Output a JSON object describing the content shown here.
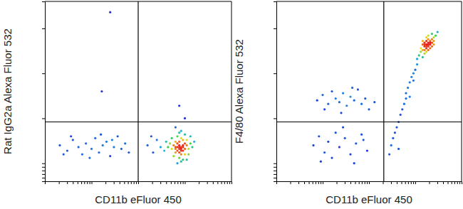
{
  "chart_data": [
    {
      "type": "scatter",
      "x_label": "CD11b eFluor 450",
      "y_label": "Rat IgG2a Alexa Fluor 532",
      "xlim": [
        0,
        100
      ],
      "ylim": [
        0,
        100
      ],
      "xticks": [
        0,
        7.5,
        11.9,
        15,
        17.5,
        19.5,
        21.1,
        22.6,
        23.9,
        25,
        32.5,
        36.9,
        40,
        42.5,
        44.5,
        46.1,
        47.6,
        48.9,
        50,
        57.5,
        61.9,
        65,
        67.5,
        69.5,
        71.1,
        72.6,
        73.9,
        75,
        82.5,
        86.9,
        90,
        92.5,
        94.5,
        96.1,
        97.6,
        98.9
      ],
      "yticks": [
        2,
        4,
        6,
        8,
        10,
        35,
        60,
        85
      ],
      "tick_labels": false,
      "gates": {
        "x": 50,
        "y": 33
      },
      "x": [
        72,
        73,
        71,
        74,
        72,
        70,
        75,
        73,
        71,
        74,
        72,
        76,
        70,
        73,
        69,
        75,
        72,
        77,
        71,
        74,
        68,
        73,
        76,
        70,
        72,
        78,
        67,
        75,
        69,
        74,
        71,
        77,
        66,
        73,
        79,
        68,
        76,
        72,
        73,
        71,
        74,
        72,
        73,
        70,
        75,
        65,
        70,
        78,
        64,
        80,
        55,
        58,
        60,
        62,
        57,
        8,
        12,
        15,
        18,
        20,
        22,
        25,
        27,
        29,
        31,
        33,
        35,
        37,
        39,
        41,
        43,
        45,
        14,
        24,
        36,
        10,
        30,
        35,
        30.5,
        72,
        75
      ],
      "values": [
        18,
        19,
        17,
        20,
        16,
        19,
        18,
        15,
        21,
        17,
        22,
        20,
        16,
        24,
        20,
        15,
        13,
        18,
        25,
        23,
        18,
        11,
        23,
        22,
        27,
        21,
        21,
        26,
        14,
        12,
        10,
        15,
        19,
        28,
        19,
        24,
        12,
        20,
        18,
        19,
        19,
        19,
        17,
        18,
        21,
        22,
        30,
        25,
        17,
        22,
        20,
        16,
        23,
        19,
        25,
        20,
        17,
        23,
        19,
        15,
        21,
        18,
        24,
        16,
        20,
        22,
        14,
        19,
        25,
        18,
        21,
        16,
        25,
        13,
        23,
        15,
        26,
        94,
        50,
        42,
        35
      ]
    },
    {
      "type": "scatter",
      "x_label": "CD11b eFluor 450",
      "y_label": "F4/80 Alexa Fluor 532",
      "xlim": [
        0,
        100
      ],
      "ylim": [
        0,
        100
      ],
      "xticks": [
        0,
        7.5,
        11.9,
        15,
        17.5,
        19.5,
        21.1,
        22.6,
        23.9,
        25,
        32.5,
        36.9,
        40,
        42.5,
        44.5,
        46.1,
        47.6,
        48.9,
        50,
        57.5,
        61.9,
        65,
        67.5,
        69.5,
        71.1,
        72.6,
        73.9,
        75,
        82.5,
        86.9,
        90,
        92.5,
        94.5,
        96.1,
        97.6,
        98.9
      ],
      "yticks": [
        2,
        4,
        6,
        8,
        10,
        35,
        60,
        85
      ],
      "tick_labels": false,
      "gates": {
        "x": 58,
        "y": 33
      },
      "x": [
        81,
        82,
        80,
        83,
        81,
        79,
        84,
        82,
        80,
        83,
        81,
        85,
        79,
        82,
        78,
        84,
        80,
        86,
        81,
        83,
        77,
        82,
        85,
        79,
        84,
        80,
        82,
        81,
        83,
        80,
        76,
        87,
        78,
        84,
        81,
        82,
        79,
        85,
        76,
        75,
        74,
        73,
        72,
        71,
        70,
        70,
        69,
        68,
        67,
        66,
        65,
        64,
        63,
        62,
        66,
        72,
        74,
        61,
        22,
        25,
        28,
        30,
        32,
        34,
        36,
        38,
        40,
        42,
        44,
        46,
        48,
        50,
        26,
        35,
        41,
        53,
        20,
        23,
        26,
        28,
        30,
        32,
        34,
        37,
        40,
        43,
        46,
        49,
        24,
        36,
        42,
        47
      ],
      "values": [
        76,
        77,
        75,
        78,
        74,
        73,
        79,
        75,
        77,
        76,
        78,
        80,
        76,
        73,
        72,
        77,
        71,
        81,
        80,
        74,
        70,
        79,
        78,
        69,
        82,
        73,
        76,
        75,
        77,
        76,
        68,
        83,
        74,
        75,
        72,
        81,
        78,
        76,
        65,
        62,
        60,
        58,
        55,
        52,
        49,
        46,
        43,
        40,
        37,
        33,
        30,
        27,
        24,
        20,
        18,
        47,
        56,
        15,
        45,
        48,
        43,
        50,
        46,
        44,
        49,
        42,
        47,
        45,
        51,
        43,
        46,
        40,
        40,
        38,
        52,
        44,
        20,
        25,
        16,
        22,
        13,
        27,
        19,
        24,
        15,
        21,
        26,
        17,
        11,
        30,
        10,
        23
      ]
    }
  ]
}
